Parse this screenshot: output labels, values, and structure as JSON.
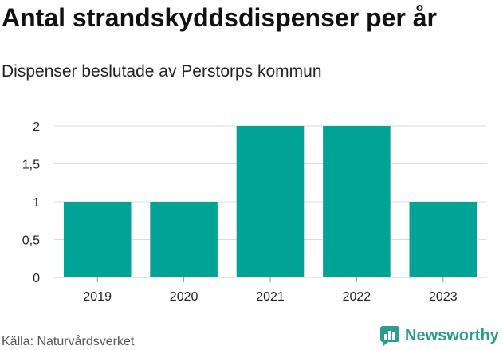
{
  "header": {
    "title": "Antal strandskyddsdispenser per år",
    "subtitle": "Dispenser beslutade av Perstorps kommun"
  },
  "footer": {
    "source": "Källa: Naturvårdsverket",
    "brand": "Newsworthy"
  },
  "colors": {
    "bar": "#00a396",
    "grid": "#dddddd",
    "brand": "#2a9d8f"
  },
  "chart_data": {
    "type": "bar",
    "categories": [
      "2019",
      "2020",
      "2021",
      "2022",
      "2023"
    ],
    "values": [
      1,
      1,
      2,
      2,
      1
    ],
    "ylim": [
      0,
      2
    ],
    "yticks": [
      0,
      0.5,
      1,
      1.5,
      2
    ],
    "ytick_labels": [
      "0",
      "0,5",
      "1",
      "1,5",
      "2"
    ],
    "title": "Antal strandskyddsdispenser per år",
    "subtitle": "Dispenser beslutade av Perstorps kommun",
    "xlabel": "",
    "ylabel": "",
    "grid": true,
    "legend": "none"
  }
}
